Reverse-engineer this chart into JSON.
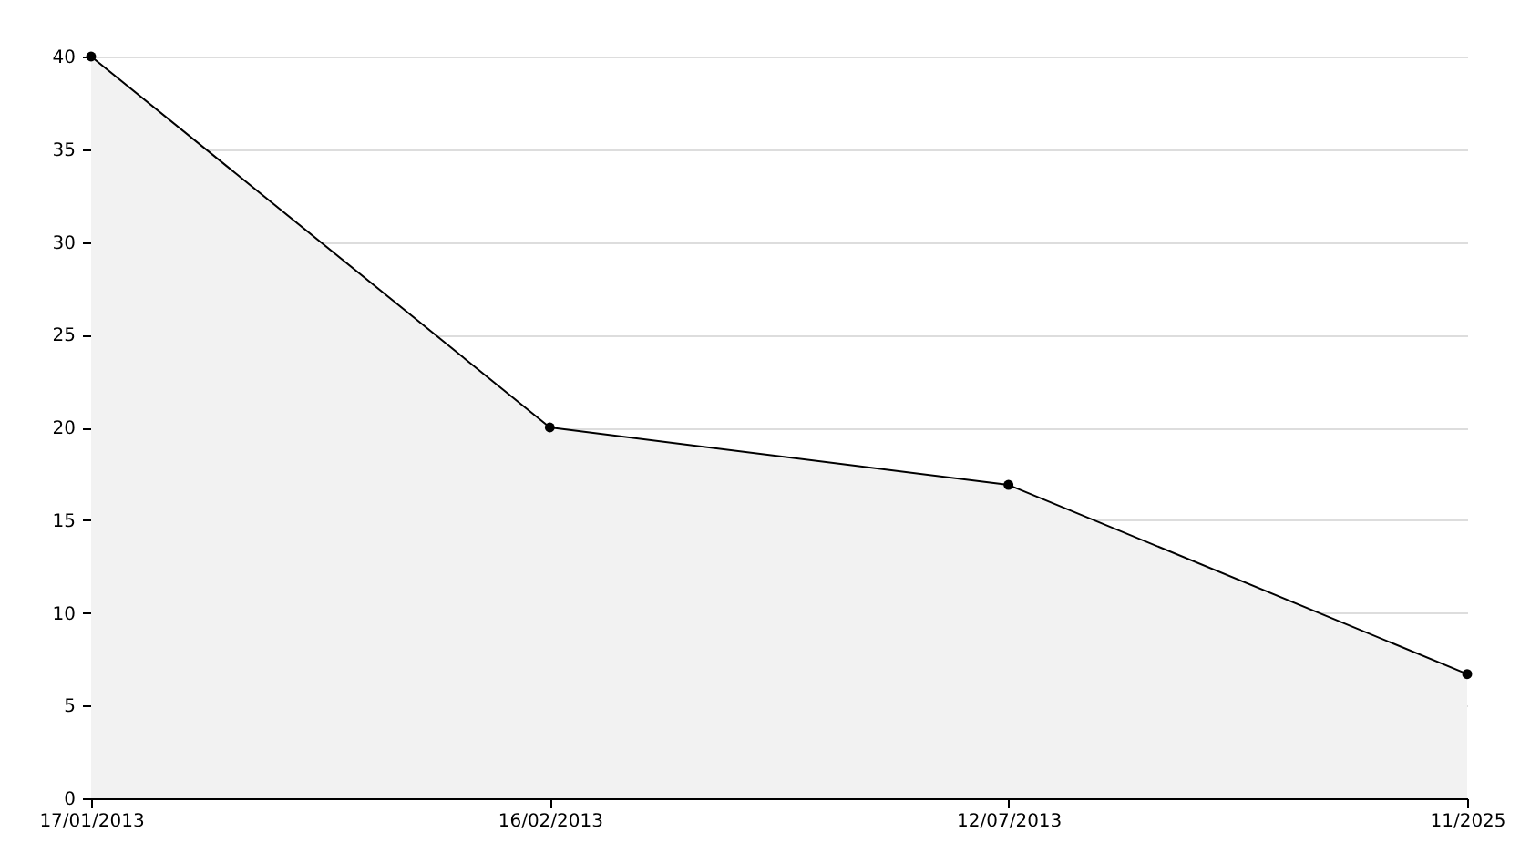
{
  "chart_data": {
    "type": "area",
    "categories": [
      "17/01/2013",
      "16/02/2013",
      "12/07/2013",
      "11/2025"
    ],
    "series": [
      {
        "color": "#000000",
        "values": [
          40,
          20,
          16.9,
          6.7
        ]
      }
    ],
    "ylim": [
      0,
      40
    ],
    "yticks": [
      0,
      5,
      10,
      15,
      20,
      25,
      30,
      35,
      40
    ],
    "grid": "y",
    "marker": "circle",
    "line_style": "solid"
  }
}
